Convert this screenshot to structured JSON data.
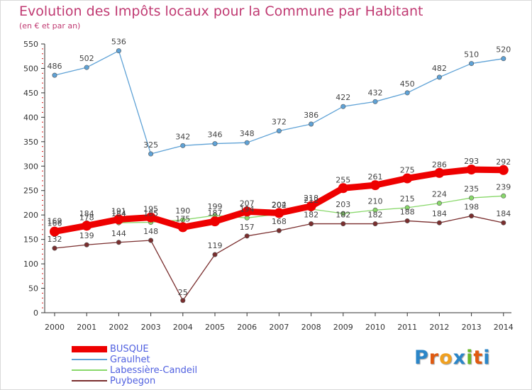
{
  "title": "Evolution des Impôts locaux pour la Commune par Habitant",
  "subtitle": "(en € et par an)",
  "chart_data": {
    "type": "line",
    "title": "Evolution des Impôts locaux pour la Commune par Habitant",
    "subtitle": "(en € et par an)",
    "xlabel": "",
    "ylabel": "",
    "ylim": [
      0,
      550
    ],
    "yticks": [
      0,
      50,
      100,
      150,
      200,
      250,
      300,
      350,
      400,
      450,
      500,
      550
    ],
    "categories": [
      "2000",
      "2001",
      "2002",
      "2003",
      "2004",
      "2005",
      "2006",
      "2007",
      "2008",
      "2009",
      "2010",
      "2011",
      "2012",
      "2013",
      "2014"
    ],
    "grid": false,
    "legend_position": "bottom-left",
    "series": [
      {
        "name": "BUSQUE",
        "color": "#ee0000",
        "values": [
          166,
          178,
          191,
          195,
          175,
          187,
          207,
          204,
          218,
          255,
          261,
          275,
          286,
          293,
          292
        ]
      },
      {
        "name": "Graulhet",
        "color": "#5fa2d6",
        "values": [
          486,
          502,
          536,
          325,
          342,
          346,
          348,
          372,
          386,
          422,
          432,
          450,
          482,
          510,
          520
        ]
      },
      {
        "name": "Labessière-Candeil",
        "color": "#88d86a",
        "values": [
          169,
          184,
          184,
          185,
          190,
          199,
          194,
          202,
          212,
          203,
          210,
          215,
          224,
          235,
          239
        ]
      },
      {
        "name": "Puybegon",
        "color": "#7a2e2e",
        "values": [
          132,
          139,
          144,
          148,
          25,
          119,
          157,
          168,
          182,
          182,
          182,
          188,
          184,
          198,
          184
        ]
      }
    ]
  },
  "legend": {
    "items": [
      {
        "label": "BUSQUE",
        "color": "#ee0000"
      },
      {
        "label": "Graulhet",
        "color": "#5fa2d6"
      },
      {
        "label": "Labessière-Candeil",
        "color": "#88d86a"
      },
      {
        "label": "Puybegon",
        "color": "#7a2e2e"
      }
    ]
  },
  "logo": {
    "letters": [
      "P",
      "r",
      "o",
      "x",
      "i",
      "t",
      "i"
    ],
    "colors": [
      "#2b86c8",
      "#e05a10",
      "#f0a020",
      "#2b86c8",
      "#6ab82a",
      "#e05a10",
      "#2b86c8"
    ]
  }
}
